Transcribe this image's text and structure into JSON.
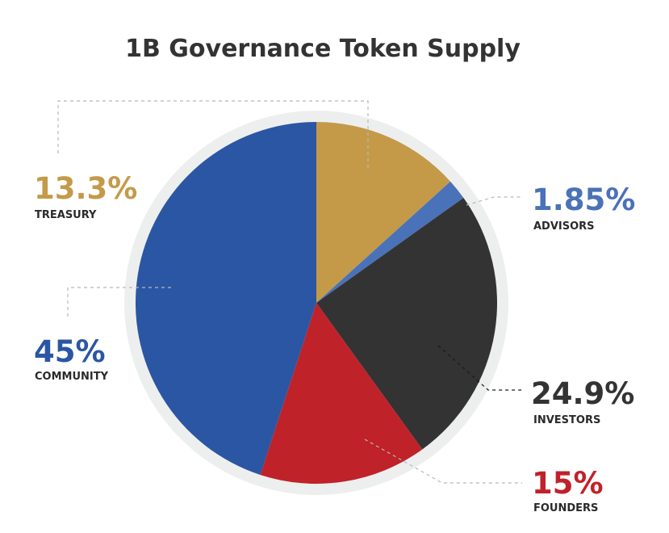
{
  "chart_data": {
    "type": "pie",
    "title": "1B Governance Token Supply",
    "start_angle_deg": 0,
    "direction": "clockwise",
    "slices": [
      {
        "label": "TREASURY",
        "value": 13.3,
        "display": "13.3%",
        "color": "#C49A49"
      },
      {
        "label": "ADVISORS",
        "value": 1.85,
        "display": "1.85%",
        "color": "#4A72B8"
      },
      {
        "label": "INVESTORS",
        "value": 24.9,
        "display": "24.9%",
        "color": "#333333"
      },
      {
        "label": "FOUNDERS",
        "value": 15,
        "display": "15%",
        "color": "#C0222A"
      },
      {
        "label": "COMMUNITY",
        "value": 45,
        "display": "45%",
        "color": "#2B56A3"
      }
    ]
  },
  "colors": {
    "ring": "#EDEFEF",
    "title": "#333333",
    "category_text": "#2A2A2A"
  }
}
